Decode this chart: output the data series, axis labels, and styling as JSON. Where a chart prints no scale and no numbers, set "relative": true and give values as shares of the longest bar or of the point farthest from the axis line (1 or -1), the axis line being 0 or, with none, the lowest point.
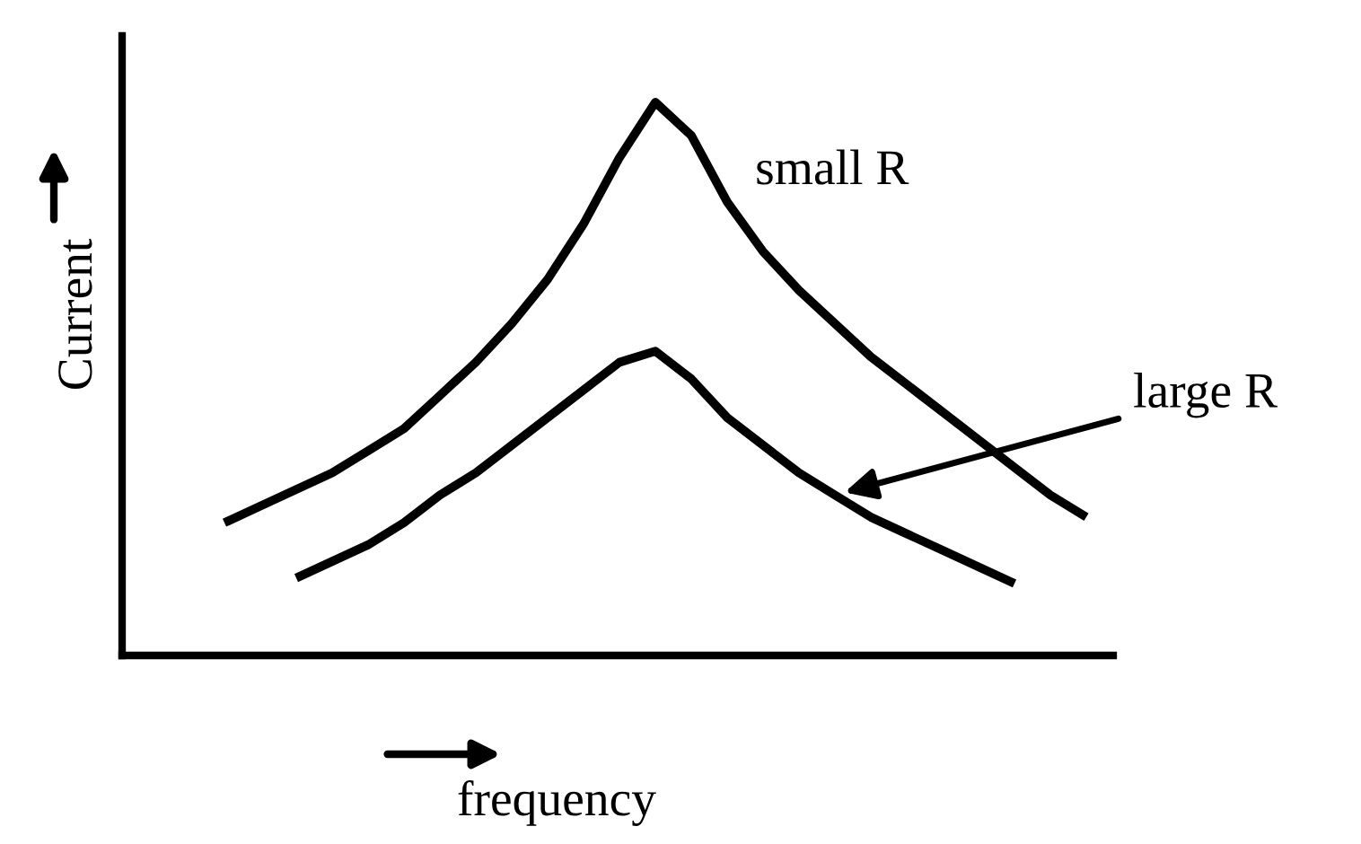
{
  "chart_data": {
    "type": "line",
    "relative": true,
    "xlabel": "frequency",
    "ylabel": "Current",
    "grid": false,
    "legend": false,
    "marker": "none",
    "line_style": "solid",
    "categories": [
      null,
      null,
      null,
      null,
      null,
      null,
      null,
      null,
      null,
      null,
      null,
      null,
      null,
      null,
      null,
      null,
      null,
      null,
      null,
      null,
      null,
      null,
      null,
      null,
      null
    ],
    "series": [
      {
        "name": "small R",
        "color": "#000000",
        "values": [
          0.24,
          0.27,
          0.3,
          0.33,
          0.37,
          0.41,
          0.47,
          0.53,
          0.6,
          0.68,
          0.78,
          0.9,
          1,
          0.94,
          0.82,
          0.73,
          0.66,
          0.6,
          0.54,
          0.49,
          0.44,
          0.39,
          0.34,
          0.29,
          0.25
        ]
      },
      {
        "name": "large R",
        "color": "#000000",
        "values": [
          null,
          null,
          0.14,
          0.17,
          0.2,
          0.24,
          0.29,
          0.33,
          0.38,
          0.43,
          0.48,
          0.53,
          0.55,
          0.5,
          0.43,
          0.38,
          0.33,
          0.29,
          0.25,
          0.22,
          0.19,
          0.16,
          0.13,
          null,
          null
        ]
      }
    ]
  }
}
